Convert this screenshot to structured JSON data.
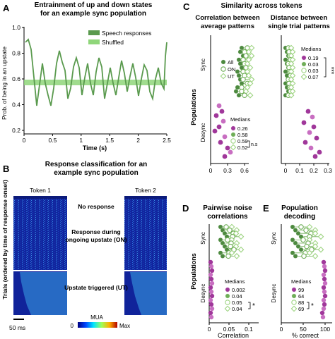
{
  "panels": {
    "A": "A",
    "B": "B",
    "C": "C",
    "D": "D",
    "E": "E"
  },
  "panelA": {
    "title_line1": "Entrainment of up and down states",
    "title_line2": "for an example sync population",
    "ylabel": "Prob. of being in an upstate",
    "xlabel": "Time (s)",
    "yticks": [
      "0.2",
      "0.4",
      "0.6",
      "0.8",
      "1.0"
    ],
    "xticks": [
      "0",
      "0.5",
      "1",
      "1.5",
      "2",
      "2.5"
    ],
    "legend": [
      "Speech responses",
      "Shuffled"
    ],
    "colors": {
      "speech": "#5a9a4e",
      "shuffled": "#8fd67a"
    }
  },
  "panelB": {
    "title_line1": "Response classification for an",
    "title_line2": "example sync population",
    "ylabel": "Trials (ordered by time of response onset)",
    "token1": "Token 1",
    "token2": "Token 2",
    "class_none": "No response",
    "class_on_1": "Response during",
    "class_on_2": "ongoing upstate (ON)",
    "class_ut": "Upstate triggered (UT)",
    "scalebar": "50 ms",
    "colorbar_label": "MUA",
    "colorbar_min": "0",
    "colorbar_max": "Max"
  },
  "panelC": {
    "title": "Similarity across tokens",
    "sub1_line1": "Correlation between",
    "sub1_line2": "average patterns",
    "sub2_line1": "Distance between",
    "sub2_line2": "single trial patterns",
    "ylabel": "Populations",
    "sync": "Sync",
    "desync": "Desync",
    "legend_conditions": [
      "All",
      "ON",
      "UT"
    ],
    "medians_label": "Medians",
    "sub1_sync_medians": [],
    "sub1_desync_medians": [
      "0.26",
      "0.58",
      "0.59",
      "0.52"
    ],
    "sub1_ns": "n.s",
    "sub1_xticks": [
      "0",
      "0.3",
      "0.6"
    ],
    "sub2_medians": [
      "0.19",
      "0.03",
      "0.03",
      "0.07"
    ],
    "sub2_sig": "***",
    "sub2_xticks": [
      "0",
      "0.1",
      "0.2",
      "0.3"
    ]
  },
  "panelD": {
    "title_line1": "Pairwise noise",
    "title_line2": "correlations",
    "ylabel": "Populations",
    "sync": "Sync",
    "desync": "Desync",
    "medians_label": "Medians",
    "medians": [
      "0.002",
      "0.04",
      "0.05",
      "0.04"
    ],
    "sig": "*",
    "xlabel": "Correlation",
    "xticks": [
      "0",
      "0.05",
      "0.1"
    ]
  },
  "panelE": {
    "title_line1": "Population",
    "title_line2": "decoding",
    "sync": "Sync",
    "desync": "Desync",
    "medians_label": "Medians",
    "medians": [
      "99",
      "64",
      "88",
      "69"
    ],
    "sig": "*",
    "xlabel": "% correct",
    "xticks": [
      "0",
      "50",
      "100"
    ]
  },
  "colors": {
    "desync": "#a0379a",
    "desync_light": "#c86ec1",
    "sync_dark": "#4d8a3f",
    "sync_mid": "#6fae57",
    "sync_light": "#9fd483"
  }
}
